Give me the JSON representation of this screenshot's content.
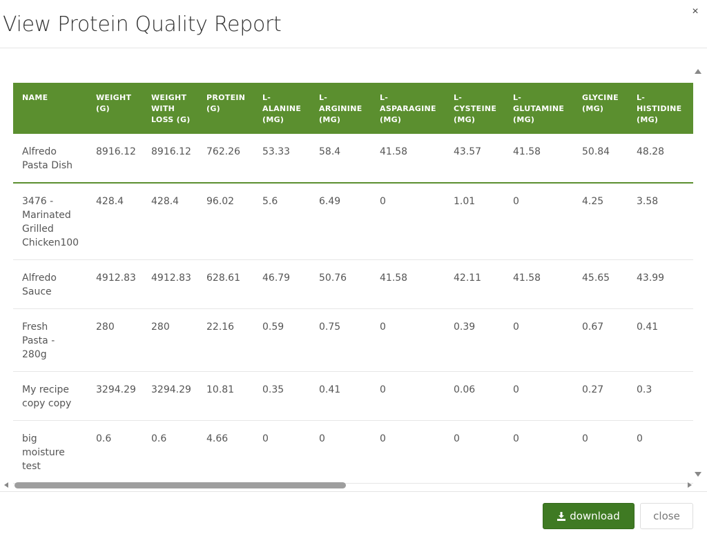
{
  "modal": {
    "title": "View Protein Quality Report",
    "close_icon": "×"
  },
  "table": {
    "headers": [
      [
        "NAME"
      ],
      [
        "WEIGHT",
        "(G)"
      ],
      [
        "WEIGHT",
        "WITH",
        "LOSS (G)"
      ],
      [
        "PROTEIN",
        "(G)"
      ],
      [
        "L-",
        "ALANINE",
        "(MG)"
      ],
      [
        "L-",
        "ARGININE",
        "(MG)"
      ],
      [
        "L-",
        "ASPARAGINE",
        "(MG)"
      ],
      [
        "L-",
        "CYSTEINE",
        "(MG)"
      ],
      [
        "L-",
        "GLUTAMINE",
        "(MG)"
      ],
      [
        "GLYCINE",
        "(MG)"
      ],
      [
        "L-",
        "HISTIDINE",
        "(MG)"
      ]
    ],
    "rows": [
      [
        [
          "Alfredo",
          "Pasta Dish"
        ],
        "8916.12",
        "8916.12",
        "762.26",
        "53.33",
        "58.4",
        "41.58",
        "43.57",
        "41.58",
        "50.84",
        "48.28"
      ],
      [
        [
          "3476 -",
          "Marinated",
          "Grilled",
          "Chicken100"
        ],
        "428.4",
        "428.4",
        "96.02",
        "5.6",
        "6.49",
        "0",
        "1.01",
        "0",
        "4.25",
        "3.58"
      ],
      [
        [
          "Alfredo",
          "Sauce"
        ],
        "4912.83",
        "4912.83",
        "628.61",
        "46.79",
        "50.76",
        "41.58",
        "42.11",
        "41.58",
        "45.65",
        "43.99"
      ],
      [
        [
          "Fresh",
          "Pasta -",
          "280g"
        ],
        "280",
        "280",
        "22.16",
        "0.59",
        "0.75",
        "0",
        "0.39",
        "0",
        "0.67",
        "0.41"
      ],
      [
        [
          "My recipe",
          "copy copy"
        ],
        "3294.29",
        "3294.29",
        "10.81",
        "0.35",
        "0.41",
        "0",
        "0.06",
        "0",
        "0.27",
        "0.3"
      ],
      [
        [
          "big",
          "moisture",
          "test"
        ],
        "0.6",
        "0.6",
        "4.66",
        "0",
        "0",
        "0",
        "0",
        "0",
        "0",
        "0"
      ]
    ]
  },
  "footer": {
    "download_label": "download",
    "close_label": "close"
  },
  "icons": {
    "download": "download-icon",
    "close": "close-icon"
  },
  "colors": {
    "header_green": "#5b8f2f",
    "button_green": "#3f7a23"
  }
}
